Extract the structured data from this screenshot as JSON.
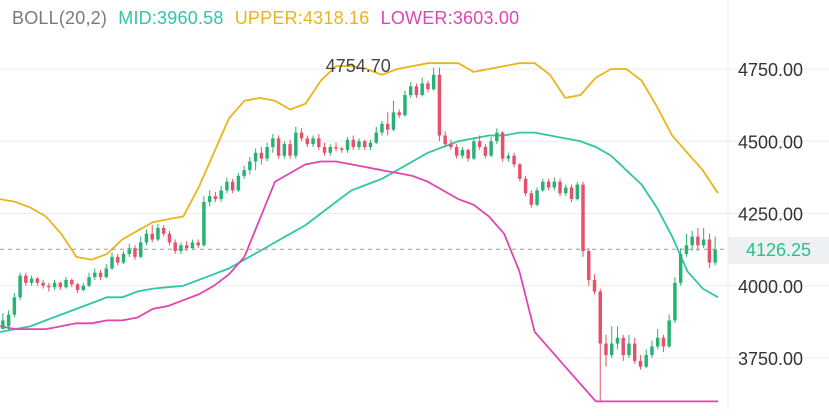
{
  "legend": {
    "indicator": "BOLL(20,2)",
    "mid": "MID:3960.58",
    "upper": "UPPER:4318.16",
    "lower": "LOWER:3603.00"
  },
  "colors": {
    "up": "#26b272",
    "down": "#e5506a",
    "mid": "#2fc6a5",
    "upper": "#e9b51b",
    "lower": "#e045b1",
    "grid": "#ececec",
    "indicator": "#7a7a7a",
    "current": "#26c287"
  },
  "chart_data": {
    "type": "candlestick",
    "indicator": "Bollinger Bands (20,2)",
    "y_axis": {
      "position": "right",
      "ticks": [
        "4750.00",
        "4500.00",
        "4250.00",
        "4000.00",
        "3750.00"
      ],
      "range": [
        3600,
        4880
      ]
    },
    "current_price": "4126.25",
    "max_label": "4754.70",
    "grid": true,
    "candles": [
      [
        3880,
        3850,
        3860,
        3905,
        "+"
      ],
      [
        3860,
        3900,
        3845,
        3915,
        "+"
      ],
      [
        3900,
        3960,
        3890,
        3975,
        "+"
      ],
      [
        3960,
        4035,
        3950,
        4045,
        "+"
      ],
      [
        4035,
        4010,
        4000,
        4045,
        "-"
      ],
      [
        4010,
        4025,
        4000,
        4035,
        "+"
      ],
      [
        4025,
        4010,
        4000,
        4030,
        "-"
      ],
      [
        4010,
        4000,
        3990,
        4020,
        "-"
      ],
      [
        4000,
        3995,
        3980,
        4010,
        "-"
      ],
      [
        3995,
        4010,
        3985,
        4020,
        "+"
      ],
      [
        4010,
        3995,
        3985,
        4015,
        "-"
      ],
      [
        3995,
        4020,
        3990,
        4030,
        "+"
      ],
      [
        4020,
        4005,
        3995,
        4025,
        "-"
      ],
      [
        4005,
        3985,
        3975,
        4010,
        "-"
      ],
      [
        3985,
        4000,
        3980,
        4010,
        "+"
      ],
      [
        4000,
        4030,
        3995,
        4045,
        "+"
      ],
      [
        4030,
        4045,
        4020,
        4060,
        "+"
      ],
      [
        4045,
        4030,
        4020,
        4055,
        "-"
      ],
      [
        4030,
        4060,
        4025,
        4075,
        "+"
      ],
      [
        4060,
        4100,
        4055,
        4115,
        "+"
      ],
      [
        4100,
        4080,
        4070,
        4110,
        "-"
      ],
      [
        4080,
        4110,
        4075,
        4120,
        "+"
      ],
      [
        4110,
        4130,
        4100,
        4145,
        "+"
      ],
      [
        4130,
        4100,
        4090,
        4140,
        "-"
      ],
      [
        4100,
        4150,
        4095,
        4170,
        "+"
      ],
      [
        4150,
        4180,
        4140,
        4195,
        "+"
      ],
      [
        4180,
        4160,
        4150,
        4210,
        "-"
      ],
      [
        4160,
        4200,
        4155,
        4215,
        "+"
      ],
      [
        4200,
        4180,
        4170,
        4210,
        "-"
      ],
      [
        4180,
        4150,
        4140,
        4190,
        "-"
      ],
      [
        4150,
        4120,
        4110,
        4160,
        "-"
      ],
      [
        4120,
        4140,
        4110,
        4150,
        "+"
      ],
      [
        4140,
        4130,
        4120,
        4155,
        "-"
      ],
      [
        4130,
        4150,
        4125,
        4160,
        "+"
      ],
      [
        4150,
        4140,
        4130,
        4160,
        "-"
      ],
      [
        4140,
        4290,
        4135,
        4310,
        "+"
      ],
      [
        4290,
        4310,
        4275,
        4330,
        "+"
      ],
      [
        4310,
        4300,
        4290,
        4325,
        "-"
      ],
      [
        4300,
        4330,
        4290,
        4345,
        "+"
      ],
      [
        4330,
        4360,
        4320,
        4375,
        "+"
      ],
      [
        4360,
        4330,
        4320,
        4370,
        "-"
      ],
      [
        4330,
        4380,
        4325,
        4390,
        "+"
      ],
      [
        4380,
        4400,
        4370,
        4415,
        "+"
      ],
      [
        4400,
        4430,
        4385,
        4445,
        "+"
      ],
      [
        4430,
        4460,
        4400,
        4475,
        "+"
      ],
      [
        4460,
        4440,
        4420,
        4480,
        "-"
      ],
      [
        4440,
        4480,
        4430,
        4495,
        "+"
      ],
      [
        4480,
        4510,
        4460,
        4525,
        "+"
      ],
      [
        4510,
        4450,
        4440,
        4520,
        "-"
      ],
      [
        4450,
        4490,
        4440,
        4500,
        "+"
      ],
      [
        4490,
        4450,
        4440,
        4505,
        "-"
      ],
      [
        4450,
        4530,
        4440,
        4550,
        "+"
      ],
      [
        4530,
        4510,
        4500,
        4545,
        "-"
      ],
      [
        4510,
        4490,
        4480,
        4520,
        "-"
      ],
      [
        4490,
        4510,
        4480,
        4520,
        "+"
      ],
      [
        4510,
        4480,
        4470,
        4525,
        "-"
      ],
      [
        4480,
        4460,
        4450,
        4495,
        "-"
      ],
      [
        4460,
        4480,
        4450,
        4490,
        "+"
      ],
      [
        4480,
        4475,
        4465,
        4495,
        "-"
      ],
      [
        4475,
        4470,
        4460,
        4480,
        "-"
      ],
      [
        4470,
        4505,
        4460,
        4515,
        "+"
      ],
      [
        4505,
        4480,
        4470,
        4520,
        "-"
      ],
      [
        4480,
        4500,
        4470,
        4510,
        "+"
      ],
      [
        4500,
        4480,
        4470,
        4505,
        "-"
      ],
      [
        4480,
        4495,
        4470,
        4505,
        "+"
      ],
      [
        4495,
        4530,
        4490,
        4550,
        "+"
      ],
      [
        4530,
        4560,
        4520,
        4570,
        "+"
      ],
      [
        4560,
        4540,
        4520,
        4600,
        "-"
      ],
      [
        4540,
        4600,
        4535,
        4640,
        "+"
      ],
      [
        4600,
        4590,
        4580,
        4610,
        "-"
      ],
      [
        4590,
        4660,
        4585,
        4675,
        "+"
      ],
      [
        4660,
        4690,
        4650,
        4705,
        "+"
      ],
      [
        4690,
        4660,
        4650,
        4700,
        "-"
      ],
      [
        4660,
        4700,
        4655,
        4720,
        "+"
      ],
      [
        4700,
        4680,
        4670,
        4710,
        "-"
      ],
      [
        4680,
        4730,
        4675,
        4755,
        "+"
      ],
      [
        4730,
        4520,
        4500,
        4755,
        "-"
      ],
      [
        4520,
        4490,
        4480,
        4535,
        "-"
      ],
      [
        4490,
        4480,
        4470,
        4505,
        "-"
      ],
      [
        4480,
        4450,
        4440,
        4490,
        "-"
      ],
      [
        4450,
        4470,
        4440,
        4480,
        "+"
      ],
      [
        4470,
        4440,
        4430,
        4475,
        "-"
      ],
      [
        4440,
        4500,
        4435,
        4510,
        "+"
      ],
      [
        4500,
        4480,
        4470,
        4520,
        "-"
      ],
      [
        4480,
        4450,
        4440,
        4490,
        "-"
      ],
      [
        4450,
        4500,
        4445,
        4515,
        "+"
      ],
      [
        4500,
        4530,
        4490,
        4545,
        "+"
      ],
      [
        4530,
        4440,
        4430,
        4535,
        "-"
      ],
      [
        4440,
        4450,
        4430,
        4460,
        "+"
      ],
      [
        4450,
        4420,
        4410,
        4460,
        "-"
      ],
      [
        4420,
        4370,
        4360,
        4425,
        "-"
      ],
      [
        4370,
        4320,
        4310,
        4380,
        "-"
      ],
      [
        4320,
        4280,
        4270,
        4330,
        "-"
      ],
      [
        4280,
        4330,
        4275,
        4340,
        "+"
      ],
      [
        4330,
        4360,
        4325,
        4370,
        "+"
      ],
      [
        4360,
        4340,
        4330,
        4370,
        "-"
      ],
      [
        4340,
        4360,
        4330,
        4375,
        "+"
      ],
      [
        4360,
        4320,
        4310,
        4370,
        "-"
      ],
      [
        4320,
        4340,
        4310,
        4350,
        "+"
      ],
      [
        4340,
        4300,
        4290,
        4350,
        "-"
      ],
      [
        4300,
        4350,
        4295,
        4360,
        "+"
      ],
      [
        4350,
        4120,
        4100,
        4360,
        "-"
      ],
      [
        4120,
        4020,
        4000,
        4130,
        "-"
      ],
      [
        4020,
        3980,
        3970,
        4040,
        "-"
      ],
      [
        3980,
        3800,
        3600,
        3990,
        "-"
      ],
      [
        3800,
        3760,
        3720,
        3830,
        "-"
      ],
      [
        3760,
        3800,
        3750,
        3860,
        "+"
      ],
      [
        3800,
        3820,
        3780,
        3860,
        "+"
      ],
      [
        3820,
        3760,
        3740,
        3830,
        "-"
      ],
      [
        3760,
        3800,
        3750,
        3830,
        "+"
      ],
      [
        3800,
        3740,
        3730,
        3820,
        "-"
      ],
      [
        3740,
        3720,
        3710,
        3760,
        "-"
      ],
      [
        3720,
        3760,
        3715,
        3780,
        "+"
      ],
      [
        3760,
        3790,
        3750,
        3810,
        "+"
      ],
      [
        3790,
        3820,
        3780,
        3850,
        "+"
      ],
      [
        3820,
        3790,
        3770,
        3830,
        "-"
      ],
      [
        3790,
        3880,
        3785,
        3900,
        "+"
      ],
      [
        3880,
        4010,
        3870,
        4030,
        "+"
      ],
      [
        4010,
        4110,
        4000,
        4130,
        "+"
      ],
      [
        4110,
        4140,
        4100,
        4180,
        "+"
      ],
      [
        4140,
        4170,
        4120,
        4190,
        "+"
      ],
      [
        4170,
        4140,
        4120,
        4200,
        "-"
      ],
      [
        4140,
        4160,
        4130,
        4200,
        "+"
      ],
      [
        4160,
        4080,
        4060,
        4180,
        "-"
      ],
      [
        4080,
        4126,
        4070,
        4170,
        "+"
      ]
    ],
    "mid": [
      3840,
      3850,
      3860,
      3880,
      3900,
      3920,
      3940,
      3960,
      3960,
      3980,
      3990,
      3995,
      4000,
      4020,
      4040,
      4060,
      4090,
      4120,
      4150,
      4180,
      4210,
      4250,
      4290,
      4330,
      4350,
      4370,
      4400,
      4430,
      4460,
      4480,
      4500,
      4510,
      4520,
      4520,
      4530,
      4530,
      4520,
      4510,
      4500,
      4480,
      4450,
      4400,
      4350,
      4270,
      4170,
      4050,
      3990,
      3960
    ],
    "upper": [
      4300,
      4290,
      4270,
      4240,
      4180,
      4100,
      4090,
      4110,
      4160,
      4190,
      4220,
      4230,
      4240,
      4340,
      4460,
      4580,
      4640,
      4650,
      4640,
      4610,
      4630,
      4710,
      4760,
      4760,
      4750,
      4730,
      4750,
      4760,
      4770,
      4770,
      4770,
      4740,
      4750,
      4760,
      4770,
      4770,
      4730,
      4650,
      4660,
      4720,
      4750,
      4750,
      4710,
      4620,
      4520,
      4460,
      4400,
      4320
    ],
    "lower": [
      3860,
      3850,
      3850,
      3850,
      3860,
      3870,
      3870,
      3880,
      3880,
      3890,
      3920,
      3930,
      3950,
      3970,
      4000,
      4040,
      4100,
      4230,
      4360,
      4390,
      4420,
      4430,
      4430,
      4420,
      4410,
      4400,
      4390,
      4380,
      4360,
      4330,
      4300,
      4280,
      4240,
      4180,
      4050,
      3840,
      3780,
      3720,
      3660,
      3600,
      3600,
      3600,
      3600,
      3600,
      3600,
      3600,
      3600,
      3600
    ]
  }
}
